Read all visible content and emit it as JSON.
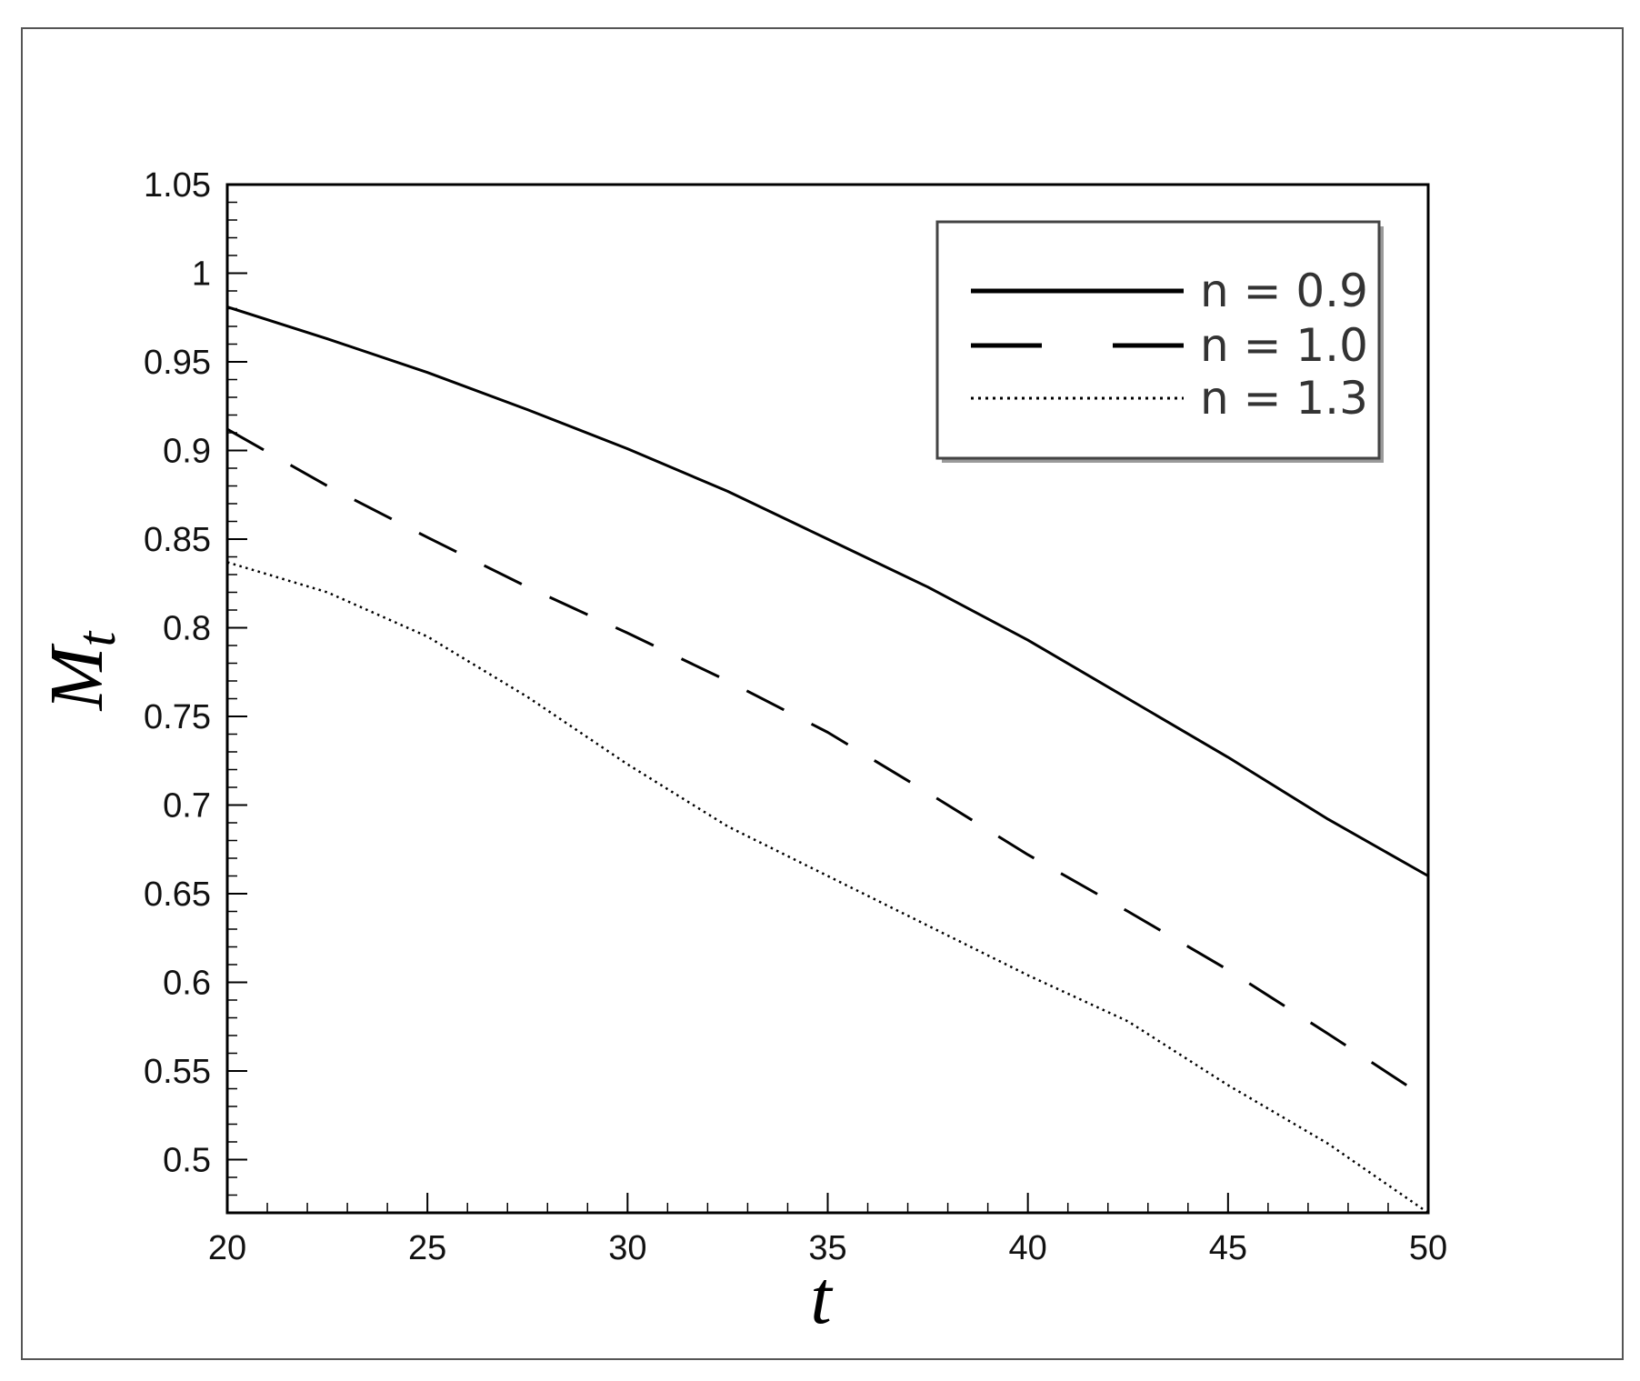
{
  "chart_data": {
    "type": "line",
    "title": "",
    "xlabel": "t",
    "ylabel": {
      "base": "M",
      "subscript": "t"
    },
    "xlim": [
      20,
      50
    ],
    "ylim": [
      0.47,
      1.05
    ],
    "xticks": [
      20,
      25,
      30,
      35,
      40,
      45,
      50
    ],
    "xtick_labels": [
      "20",
      "25",
      "30",
      "35",
      "40",
      "45",
      "50"
    ],
    "yticks": [
      0.5,
      0.55,
      0.6,
      0.65,
      0.7,
      0.75,
      0.8,
      0.85,
      0.9,
      0.95,
      1,
      1.05
    ],
    "ytick_labels": [
      "0.5",
      "0.55",
      "0.6",
      "0.65",
      "0.7",
      "0.75",
      "0.8",
      "0.85",
      "0.9",
      "0.95",
      "1",
      "1.05"
    ],
    "grid": false,
    "legend_position": "top-right",
    "series": [
      {
        "name": "n = 0.9",
        "style": "solid",
        "color": "#000000",
        "x": [
          20,
          22.5,
          25,
          27.5,
          30,
          32.5,
          35,
          37.5,
          40,
          42.5,
          45,
          47.5,
          50
        ],
        "y": [
          0.981,
          0.963,
          0.944,
          0.923,
          0.901,
          0.877,
          0.85,
          0.823,
          0.793,
          0.76,
          0.727,
          0.692,
          0.66
        ]
      },
      {
        "name": "n = 1.0",
        "style": "dashed",
        "color": "#000000",
        "x": [
          20,
          22.5,
          25,
          27.5,
          30,
          32.5,
          35,
          37.5,
          40,
          42.5,
          45,
          47.5,
          50
        ],
        "y": [
          0.912,
          0.88,
          0.851,
          0.823,
          0.797,
          0.77,
          0.741,
          0.707,
          0.672,
          0.64,
          0.607,
          0.571,
          0.534
        ]
      },
      {
        "name": "n = 1.3",
        "style": "dotted",
        "color": "#000000",
        "x": [
          20,
          22.5,
          25,
          27.5,
          30,
          32.5,
          35,
          37.5,
          40,
          42.5,
          45,
          47.5,
          50
        ],
        "y": [
          0.837,
          0.82,
          0.795,
          0.761,
          0.723,
          0.688,
          0.66,
          0.632,
          0.604,
          0.578,
          0.542,
          0.509,
          0.47
        ]
      }
    ]
  }
}
